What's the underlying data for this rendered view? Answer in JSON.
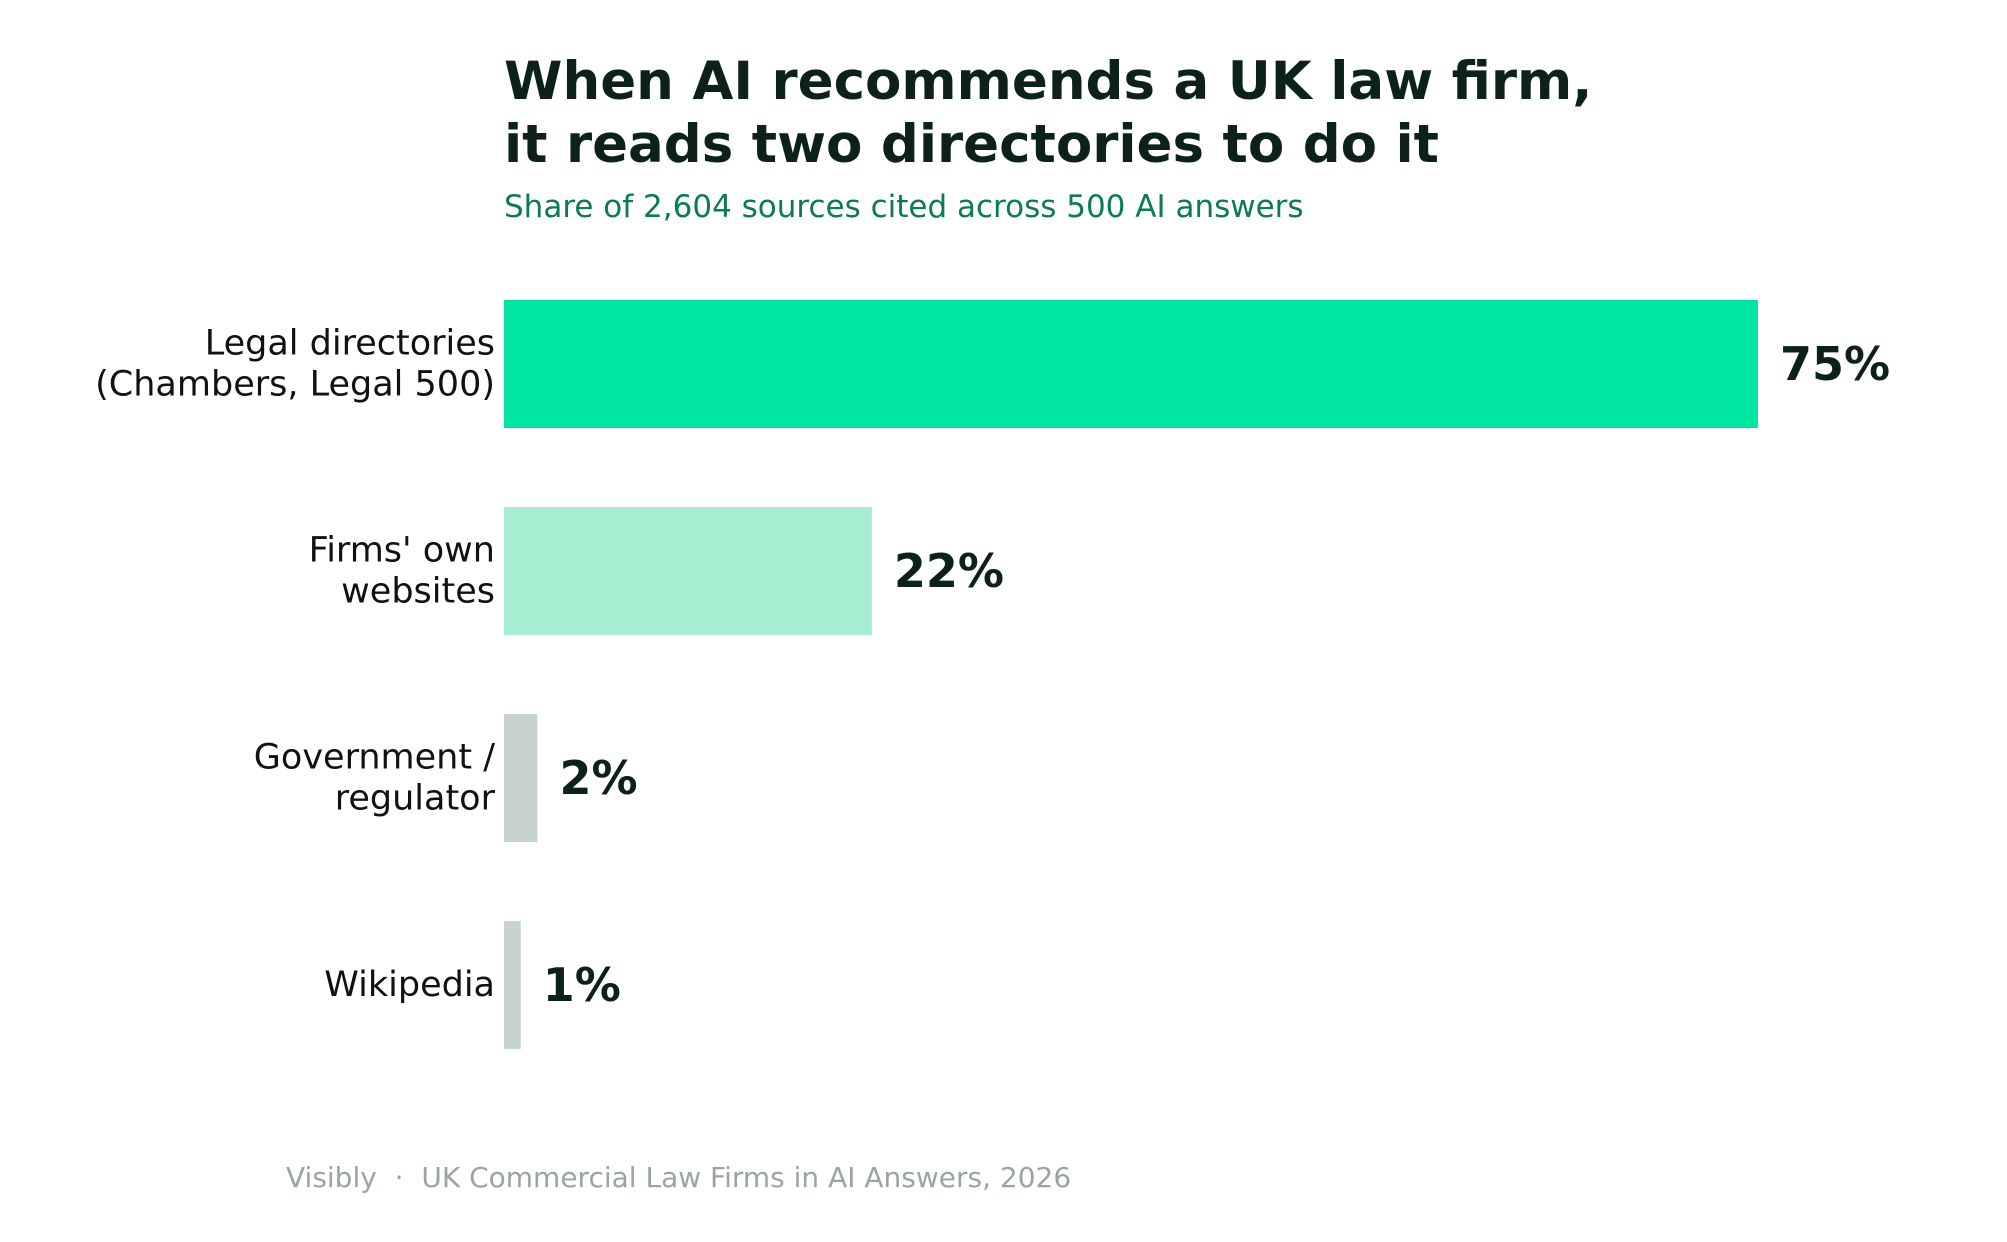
{
  "title_lines": [
    "When AI recommends a UK law firm,",
    "it reads two directories to do it"
  ],
  "subtitle": "Share of 2,604 sources cited across 500 AI answers",
  "footer": {
    "source": "Visibly",
    "separator": "·",
    "report": "UK Commercial Law Firms in AI Answers, 2026"
  },
  "colors": {
    "primary_bar": "#00e5a2",
    "secondary_bar": "#a6edd2",
    "muted_bar": "#c7d3cd",
    "value_label": "#0d211b",
    "category_label": "#111111",
    "subtitle": "#0c7a55",
    "footer": "#9aa5a2"
  },
  "chart_data": {
    "type": "bar",
    "orientation": "horizontal",
    "unit": "%",
    "xlim": [
      0,
      75
    ],
    "grid": false,
    "categories": [
      [
        "Legal directories",
        "(Chambers, Legal 500)"
      ],
      [
        "Firms' own",
        "websites"
      ],
      [
        "Government /",
        "regulator"
      ],
      [
        "Wikipedia"
      ]
    ],
    "values": [
      75,
      22,
      2,
      1
    ],
    "value_labels": [
      "75%",
      "22%",
      "2%",
      "1%"
    ],
    "bar_colors": [
      "#00e5a2",
      "#a6edd2",
      "#c7d3cd",
      "#c7d3cd"
    ]
  }
}
